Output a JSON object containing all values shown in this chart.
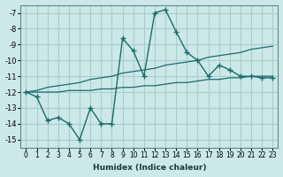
{
  "xlabel": "Humidex (Indice chaleur)",
  "bg_color": "#cce8e8",
  "grid_color": "#aacccc",
  "line_color": "#1a6b6b",
  "x_values": [
    0,
    1,
    2,
    3,
    4,
    5,
    6,
    7,
    8,
    9,
    10,
    11,
    12,
    13,
    14,
    15,
    16,
    17,
    18,
    19,
    20,
    21,
    22,
    23
  ],
  "series_main": [
    -12.0,
    -12.3,
    -13.8,
    -13.6,
    -14.0,
    -15.0,
    -13.0,
    -14.0,
    -14.0,
    -8.6,
    -9.4,
    -11.0,
    -7.0,
    -6.8,
    -8.2,
    -9.5,
    -10.0,
    -11.0,
    -10.3,
    -10.6,
    -11.0,
    -11.0,
    -11.1,
    -11.1
  ],
  "series_trend1": [
    -12.0,
    -11.9,
    -11.7,
    -11.6,
    -11.5,
    -11.4,
    -11.2,
    -11.1,
    -11.0,
    -10.8,
    -10.7,
    -10.6,
    -10.5,
    -10.3,
    -10.2,
    -10.1,
    -10.0,
    -9.8,
    -9.7,
    -9.6,
    -9.5,
    -9.3,
    -9.2,
    -9.1
  ],
  "series_trend2": [
    -12.0,
    -12.0,
    -12.0,
    -12.0,
    -11.9,
    -11.9,
    -11.9,
    -11.8,
    -11.8,
    -11.7,
    -11.7,
    -11.6,
    -11.6,
    -11.5,
    -11.4,
    -11.4,
    -11.3,
    -11.2,
    -11.2,
    -11.1,
    -11.1,
    -11.0,
    -11.0,
    -11.0
  ],
  "xlim": [
    -0.5,
    23.5
  ],
  "ylim": [
    -15.5,
    -6.5
  ],
  "yticks": [
    -15,
    -14,
    -13,
    -12,
    -11,
    -10,
    -9,
    -8,
    -7
  ]
}
